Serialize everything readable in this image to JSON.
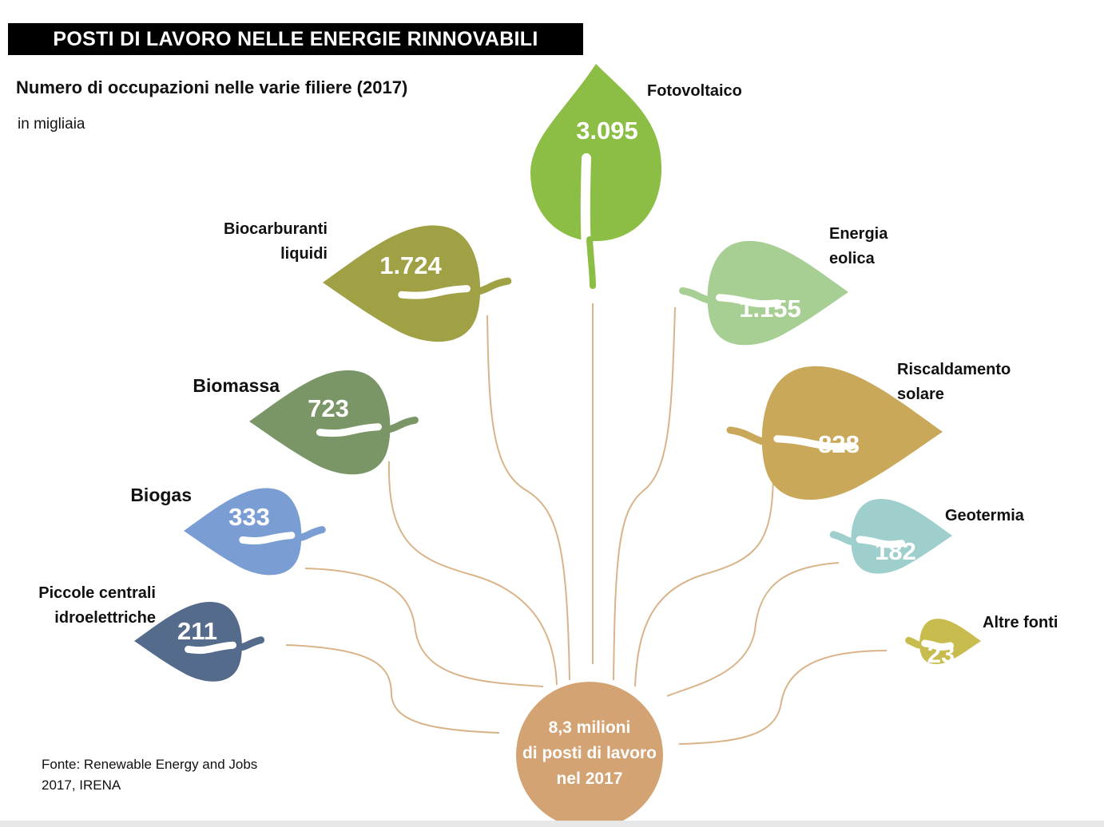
{
  "title": "POSTI DI LAVORO NELLE ENERGIE RINNOVABILI",
  "subtitle": "Numero di occupazioni nelle varie filiere (2017)",
  "unit": "in migliaia",
  "source_lines": [
    "Fonte: Renewable Energy and Jobs",
    "2017, IRENA"
  ],
  "center": {
    "lines": [
      "8,3 milioni",
      "di posti di lavoro",
      "nel 2017"
    ],
    "color": "#d4a373"
  },
  "stem_color": "#d9b48a",
  "chart_data": {
    "type": "other",
    "unit": "in migliaia",
    "categories": [
      "Fotovoltaico",
      "Biocarburanti liquidi",
      "Energia eolica",
      "Biomassa",
      "Riscaldamento solare",
      "Biogas",
      "Geotermia",
      "Piccole centrali idroelettriche",
      "Altre fonti"
    ],
    "items": [
      {
        "label_lines": [
          "Fotovoltaico"
        ],
        "value": 3095,
        "value_label": "3.095",
        "color": "#8cbe45"
      },
      {
        "label_lines": [
          "Biocarburanti",
          "liquidi"
        ],
        "value": 1724,
        "value_label": "1.724",
        "color": "#a0a044"
      },
      {
        "label_lines": [
          "Energia",
          "eolica"
        ],
        "value": 1155,
        "value_label": "1.155",
        "color": "#a7cf94"
      },
      {
        "label_lines": [
          "Biomassa"
        ],
        "value": 723,
        "value_label": "723",
        "color": "#7a9566"
      },
      {
        "label_lines": [
          "Riscaldamento",
          "solare"
        ],
        "value": 828,
        "value_label": "828",
        "color": "#c9a85a"
      },
      {
        "label_lines": [
          "Biogas"
        ],
        "value": 333,
        "value_label": "333",
        "color": "#7a9dd4"
      },
      {
        "label_lines": [
          "Geotermia"
        ],
        "value": 182,
        "value_label": "182",
        "color": "#9ecfcc"
      },
      {
        "label_lines": [
          "Piccole centrali",
          "idroelettriche"
        ],
        "value": 211,
        "value_label": "211",
        "color": "#546b8c"
      },
      {
        "label_lines": [
          "Altre fonti"
        ],
        "value": 23,
        "value_label": "23",
        "color": "#c9bc4e"
      }
    ]
  }
}
